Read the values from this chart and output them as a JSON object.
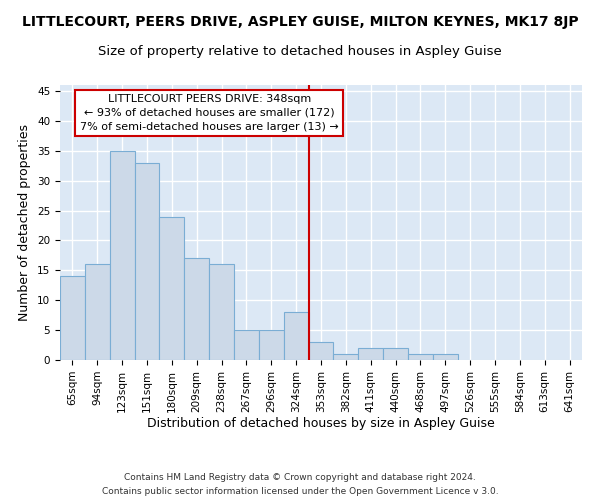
{
  "title": "LITTLECOURT, PEERS DRIVE, ASPLEY GUISE, MILTON KEYNES, MK17 8JP",
  "subtitle": "Size of property relative to detached houses in Aspley Guise",
  "xlabel": "Distribution of detached houses by size in Aspley Guise",
  "ylabel": "Number of detached properties",
  "categories": [
    "65sqm",
    "94sqm",
    "123sqm",
    "151sqm",
    "180sqm",
    "209sqm",
    "238sqm",
    "267sqm",
    "296sqm",
    "324sqm",
    "353sqm",
    "382sqm",
    "411sqm",
    "440sqm",
    "468sqm",
    "497sqm",
    "526sqm",
    "555sqm",
    "584sqm",
    "613sqm",
    "641sqm"
  ],
  "values": [
    14,
    16,
    35,
    33,
    24,
    17,
    16,
    5,
    5,
    8,
    3,
    1,
    2,
    2,
    1,
    1,
    0,
    0,
    0,
    0,
    0
  ],
  "bar_color": "#ccd9e8",
  "bar_edge_color": "#7aadd4",
  "vline_color": "#cc0000",
  "vline_pos": 9.5,
  "annotation_title": "LITTLECOURT PEERS DRIVE: 348sqm",
  "annotation_line1": "← 93% of detached houses are smaller (172)",
  "annotation_line2": "7% of semi-detached houses are larger (13) →",
  "annotation_box_edge": "#cc0000",
  "ylim": [
    0,
    46
  ],
  "yticks": [
    0,
    5,
    10,
    15,
    20,
    25,
    30,
    35,
    40,
    45
  ],
  "footer_line1": "Contains HM Land Registry data © Crown copyright and database right 2024.",
  "footer_line2": "Contains public sector information licensed under the Open Government Licence v 3.0.",
  "background_color": "#dce8f5",
  "grid_color": "#ffffff",
  "title_fontsize": 10,
  "subtitle_fontsize": 9.5,
  "axis_label_fontsize": 9,
  "tick_fontsize": 7.5,
  "annotation_fontsize": 8,
  "footer_fontsize": 6.5
}
